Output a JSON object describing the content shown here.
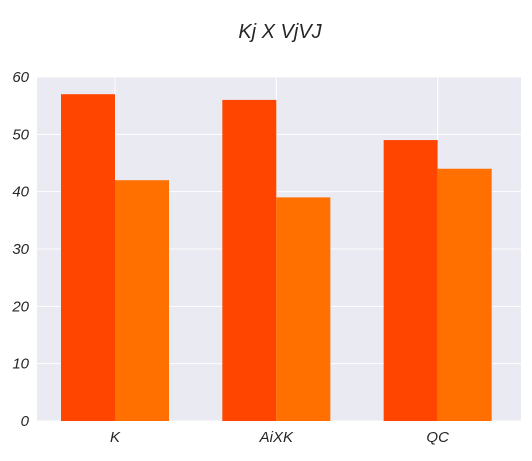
{
  "chart_data": {
    "type": "bar",
    "title": "Kj X VjVJ",
    "xlabel": "",
    "ylabel": "",
    "categories": [
      "K",
      "AiXK",
      "QC"
    ],
    "series": [
      {
        "values": [
          57,
          56,
          49
        ],
        "color": "#FF4500"
      },
      {
        "values": [
          42,
          39,
          44
        ],
        "color": "#FF7000"
      }
    ],
    "ylim": [
      0,
      60
    ],
    "yticks": [
      0,
      10,
      20,
      30,
      40,
      50,
      60
    ],
    "grid": true,
    "legend": "none",
    "background_color": "#EAEAF2",
    "grid_color": "#FFFFFF"
  }
}
